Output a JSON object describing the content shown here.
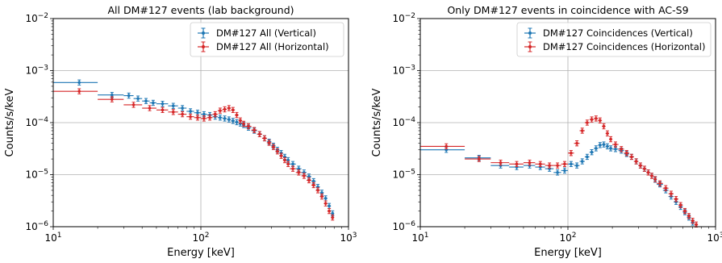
{
  "chart_data": [
    {
      "type": "scatter",
      "title": "All DM#127 events (lab background)",
      "xlabel": "Energy [keV]",
      "ylabel": "Counts/s/keV",
      "xscale": "log",
      "yscale": "log",
      "xlim": [
        10,
        1000
      ],
      "ylim": [
        1e-06,
        0.01
      ],
      "grid": true,
      "legend": "top-right",
      "x_ticks": [
        {
          "base": "10",
          "exp": "1"
        },
        {
          "base": "10",
          "exp": "2"
        },
        {
          "base": "10",
          "exp": "3"
        }
      ],
      "y_ticks": [
        {
          "base": "10",
          "exp": "−6"
        },
        {
          "base": "10",
          "exp": "−5"
        },
        {
          "base": "10",
          "exp": "−4"
        },
        {
          "base": "10",
          "exp": "−3"
        },
        {
          "base": "10",
          "exp": "−2"
        }
      ],
      "series": [
        {
          "name": "DM#127 All (Vertical)",
          "color": "#1f77b4",
          "points": [
            [
              15,
              0.00059,
              10,
              20
            ],
            [
              25,
              0.00034,
              20,
              30
            ],
            [
              32.5,
              0.00033,
              30,
              35
            ],
            [
              37.5,
              0.00029,
              35,
              40
            ],
            [
              42.5,
              0.00026,
              40,
              45
            ],
            [
              47.5,
              0.00024,
              45,
              50
            ],
            [
              55,
              0.00023,
              50,
              60
            ],
            [
              65,
              0.00021,
              60,
              70
            ],
            [
              75,
              0.00019,
              70,
              80
            ],
            [
              85,
              0.000165,
              80,
              90
            ],
            [
              95,
              0.000155,
              90,
              100
            ],
            [
              105,
              0.000145,
              100,
              110
            ],
            [
              115,
              0.00014,
              110,
              120
            ],
            [
              125,
              0.00013,
              120,
              130
            ],
            [
              135,
              0.000125,
              130,
              140
            ],
            [
              145,
              0.00012,
              140,
              150
            ],
            [
              155,
              0.000115,
              150,
              160
            ],
            [
              165,
              0.000108,
              160,
              170
            ],
            [
              175,
              0.000102,
              170,
              180
            ],
            [
              185,
              9.6e-05,
              180,
              190
            ],
            [
              195,
              9e-05,
              190,
              200
            ],
            [
              210,
              8e-05,
              200,
              220
            ],
            [
              230,
              7e-05,
              220,
              240
            ],
            [
              250,
              6e-05,
              240,
              260
            ],
            [
              270,
              5e-05,
              260,
              280
            ],
            [
              290,
              4.3e-05,
              280,
              300
            ],
            [
              310,
              3.6e-05,
              300,
              320
            ],
            [
              330,
              3e-05,
              320,
              340
            ],
            [
              350,
              2.6e-05,
              340,
              360
            ],
            [
              370,
              2.2e-05,
              360,
              380
            ],
            [
              390,
              1.9e-05,
              380,
              400
            ],
            [
              420,
              1.6e-05,
              400,
              440
            ],
            [
              460,
              1.3e-05,
              440,
              480
            ],
            [
              500,
              1.1e-05,
              480,
              520
            ],
            [
              540,
              9.2e-06,
              520,
              560
            ],
            [
              580,
              7.5e-06,
              560,
              600
            ],
            [
              620,
              5.8e-06,
              600,
              640
            ],
            [
              660,
              4.5e-06,
              640,
              680
            ],
            [
              700,
              3.5e-06,
              680,
              720
            ],
            [
              740,
              2.5e-06,
              720,
              760
            ],
            [
              780,
              1.8e-06,
              760,
              800
            ]
          ]
        },
        {
          "name": "DM#127 All (Horizontal)",
          "color": "#d62728",
          "points": [
            [
              15,
              0.0004,
              10,
              20
            ],
            [
              25,
              0.00028,
              20,
              30
            ],
            [
              35,
              0.00022,
              30,
              40
            ],
            [
              45,
              0.00019,
              40,
              50
            ],
            [
              55,
              0.000175,
              50,
              60
            ],
            [
              65,
              0.00016,
              60,
              70
            ],
            [
              75,
              0.000145,
              70,
              80
            ],
            [
              85,
              0.00013,
              80,
              90
            ],
            [
              95,
              0.000125,
              90,
              100
            ],
            [
              105,
              0.00012,
              100,
              110
            ],
            [
              115,
              0.000125,
              110,
              120
            ],
            [
              125,
              0.000145,
              120,
              130
            ],
            [
              135,
              0.00017,
              130,
              140
            ],
            [
              145,
              0.00018,
              140,
              150
            ],
            [
              155,
              0.00019,
              150,
              160
            ],
            [
              165,
              0.000175,
              160,
              170
            ],
            [
              175,
              0.00014,
              170,
              180
            ],
            [
              185,
              0.00011,
              180,
              190
            ],
            [
              195,
              9.5e-05,
              190,
              200
            ],
            [
              210,
              8.5e-05,
              200,
              220
            ],
            [
              230,
              7.2e-05,
              220,
              240
            ],
            [
              250,
              6e-05,
              240,
              260
            ],
            [
              270,
              5e-05,
              260,
              280
            ],
            [
              290,
              4.1e-05,
              280,
              300
            ],
            [
              310,
              3.4e-05,
              300,
              320
            ],
            [
              330,
              2.8e-05,
              320,
              340
            ],
            [
              350,
              2.3e-05,
              340,
              360
            ],
            [
              370,
              1.9e-05,
              360,
              380
            ],
            [
              390,
              1.6e-05,
              380,
              400
            ],
            [
              420,
              1.3e-05,
              400,
              440
            ],
            [
              460,
              1.1e-05,
              440,
              480
            ],
            [
              500,
              9.5e-06,
              480,
              520
            ],
            [
              540,
              7.8e-06,
              520,
              560
            ],
            [
              580,
              6.3e-06,
              560,
              600
            ],
            [
              620,
              5e-06,
              600,
              640
            ],
            [
              660,
              3.8e-06,
              640,
              680
            ],
            [
              700,
              2.8e-06,
              680,
              720
            ],
            [
              740,
              2e-06,
              720,
              760
            ],
            [
              780,
              1.5e-06,
              760,
              800
            ]
          ]
        }
      ]
    },
    {
      "type": "scatter",
      "title": "Only DM#127 events in coincidence with AC-S9",
      "xlabel": "Energy [keV]",
      "ylabel": "Counts/s/keV",
      "xscale": "log",
      "yscale": "log",
      "xlim": [
        10,
        1000
      ],
      "ylim": [
        1e-06,
        0.01
      ],
      "grid": true,
      "legend": "top-right",
      "x_ticks": [
        {
          "base": "10",
          "exp": "1"
        },
        {
          "base": "10",
          "exp": "2"
        },
        {
          "base": "10",
          "exp": "3"
        }
      ],
      "y_ticks": [
        {
          "base": "10",
          "exp": "−6"
        },
        {
          "base": "10",
          "exp": "−5"
        },
        {
          "base": "10",
          "exp": "−4"
        },
        {
          "base": "10",
          "exp": "−3"
        },
        {
          "base": "10",
          "exp": "−2"
        }
      ],
      "series": [
        {
          "name": "DM#127 Coincidences (Vertical)",
          "color": "#1f77b4",
          "points": [
            [
              15,
              3e-05,
              10,
              20
            ],
            [
              25,
              2.1e-05,
              20,
              30
            ],
            [
              35,
              1.5e-05,
              30,
              40
            ],
            [
              45,
              1.4e-05,
              40,
              50
            ],
            [
              55,
              1.5e-05,
              50,
              60
            ],
            [
              65,
              1.4e-05,
              60,
              70
            ],
            [
              75,
              1.3e-05,
              70,
              80
            ],
            [
              85,
              1.1e-05,
              80,
              90
            ],
            [
              95,
              1.2e-05,
              90,
              100
            ],
            [
              105,
              1.6e-05,
              100,
              110
            ],
            [
              115,
              1.5e-05,
              110,
              120
            ],
            [
              125,
              1.8e-05,
              120,
              130
            ],
            [
              135,
              2.2e-05,
              130,
              140
            ],
            [
              145,
              2.7e-05,
              140,
              150
            ],
            [
              155,
              3.2e-05,
              150,
              160
            ],
            [
              165,
              3.7e-05,
              160,
              170
            ],
            [
              175,
              3.8e-05,
              170,
              180
            ],
            [
              185,
              3.5e-05,
              180,
              190
            ],
            [
              195,
              3.2e-05,
              190,
              200
            ],
            [
              210,
              3.1e-05,
              200,
              220
            ],
            [
              230,
              2.9e-05,
              220,
              240
            ],
            [
              250,
              2.5e-05,
              240,
              260
            ],
            [
              270,
              2.2e-05,
              260,
              280
            ],
            [
              290,
              1.8e-05,
              280,
              300
            ],
            [
              310,
              1.5e-05,
              300,
              320
            ],
            [
              330,
              1.3e-05,
              320,
              340
            ],
            [
              350,
              1.1e-05,
              340,
              360
            ],
            [
              370,
              9.5e-06,
              360,
              380
            ],
            [
              390,
              8e-06,
              380,
              400
            ],
            [
              420,
              6.5e-06,
              400,
              440
            ],
            [
              460,
              5e-06,
              440,
              480
            ],
            [
              500,
              3.8e-06,
              480,
              520
            ],
            [
              540,
              3e-06,
              520,
              560
            ],
            [
              580,
              2.4e-06,
              560,
              600
            ],
            [
              620,
              1.9e-06,
              600,
              640
            ],
            [
              660,
              1.5e-06,
              640,
              680
            ],
            [
              700,
              1.2e-06,
              680,
              720
            ]
          ]
        },
        {
          "name": "DM#127 Coincidences (Horizontal)",
          "color": "#d62728",
          "points": [
            [
              15,
              3.5e-05,
              10,
              20
            ],
            [
              25,
              2e-05,
              20,
              30
            ],
            [
              35,
              1.7e-05,
              30,
              40
            ],
            [
              45,
              1.6e-05,
              40,
              50
            ],
            [
              55,
              1.7e-05,
              50,
              60
            ],
            [
              65,
              1.6e-05,
              60,
              70
            ],
            [
              75,
              1.5e-05,
              70,
              80
            ],
            [
              85,
              1.5e-05,
              80,
              90
            ],
            [
              95,
              1.6e-05,
              90,
              100
            ],
            [
              105,
              2.6e-05,
              100,
              110
            ],
            [
              115,
              4e-05,
              110,
              120
            ],
            [
              125,
              7e-05,
              120,
              130
            ],
            [
              135,
              0.0001,
              130,
              140
            ],
            [
              145,
              0.000115,
              140,
              150
            ],
            [
              155,
              0.00012,
              150,
              160
            ],
            [
              165,
              0.00011,
              160,
              170
            ],
            [
              175,
              8.5e-05,
              170,
              180
            ],
            [
              185,
              6.2e-05,
              180,
              190
            ],
            [
              195,
              4.8e-05,
              190,
              200
            ],
            [
              210,
              3.8e-05,
              200,
              220
            ],
            [
              230,
              3.1e-05,
              220,
              240
            ],
            [
              250,
              2.6e-05,
              240,
              260
            ],
            [
              270,
              2.2e-05,
              260,
              280
            ],
            [
              290,
              1.8e-05,
              280,
              300
            ],
            [
              310,
              1.5e-05,
              300,
              320
            ],
            [
              330,
              1.3e-05,
              320,
              340
            ],
            [
              350,
              1.1e-05,
              340,
              360
            ],
            [
              370,
              9.5e-06,
              360,
              380
            ],
            [
              390,
              8.2e-06,
              380,
              400
            ],
            [
              420,
              6.8e-06,
              400,
              440
            ],
            [
              460,
              5.5e-06,
              440,
              480
            ],
            [
              500,
              4.3e-06,
              480,
              520
            ],
            [
              540,
              3.4e-06,
              520,
              560
            ],
            [
              580,
              2.6e-06,
              560,
              600
            ],
            [
              620,
              2e-06,
              600,
              640
            ],
            [
              660,
              1.6e-06,
              640,
              680
            ],
            [
              700,
              1.3e-06,
              680,
              720
            ],
            [
              740,
              1.1e-06,
              720,
              760
            ]
          ]
        }
      ]
    }
  ]
}
